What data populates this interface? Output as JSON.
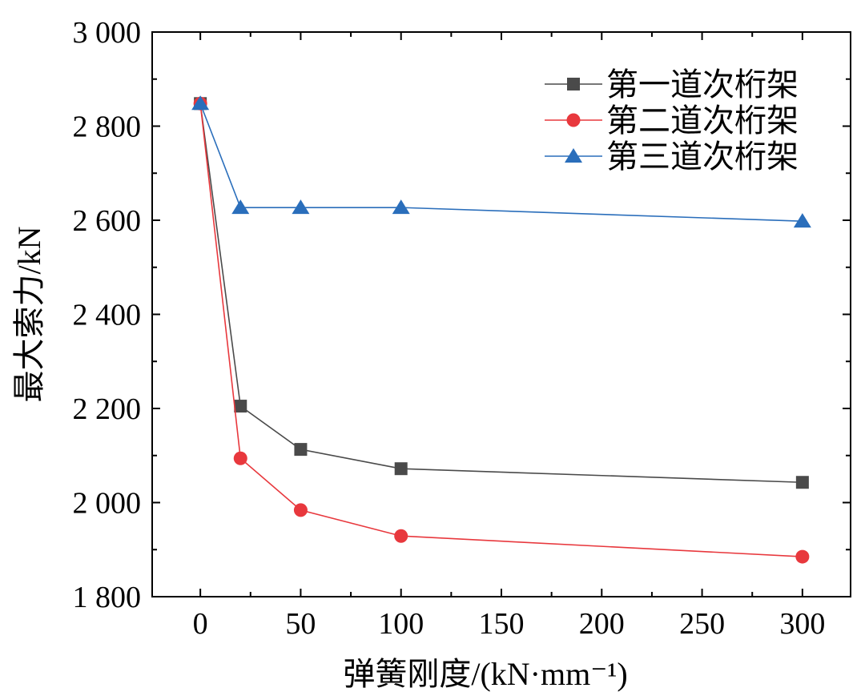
{
  "chart_data": {
    "type": "line",
    "xlabel": "弹簧刚度/(kN·mm⁻¹)",
    "ylabel": "最大索力/kN",
    "xlim": [
      -24,
      324
    ],
    "ylim": [
      1800,
      3000
    ],
    "xticks": [
      0,
      50,
      100,
      150,
      200,
      250,
      300
    ],
    "xtick_labels": [
      "0",
      "50",
      "100",
      "150",
      "200",
      "250",
      "300"
    ],
    "yticks": [
      1800,
      2000,
      2200,
      2400,
      2600,
      2800,
      3000
    ],
    "ytick_labels": [
      "1 800",
      "2 000",
      "2 200",
      "2 400",
      "2 600",
      "2 800",
      "3 000"
    ],
    "grid": false,
    "legend_position": "top-right",
    "x": [
      0,
      20,
      50,
      100,
      300
    ],
    "series": [
      {
        "name": "第一道次桁架",
        "values": [
          2848,
          2205,
          2113,
          2072,
          2043
        ],
        "color": "#4a4a4a",
        "marker": "square"
      },
      {
        "name": "第二道次桁架",
        "values": [
          2848,
          2094,
          1984,
          1929,
          1885
        ],
        "color": "#e8383d",
        "marker": "circle"
      },
      {
        "name": "第三道次桁架",
        "values": [
          2848,
          2627,
          2627,
          2627,
          2598
        ],
        "color": "#2a6ebb",
        "marker": "triangle"
      }
    ]
  }
}
